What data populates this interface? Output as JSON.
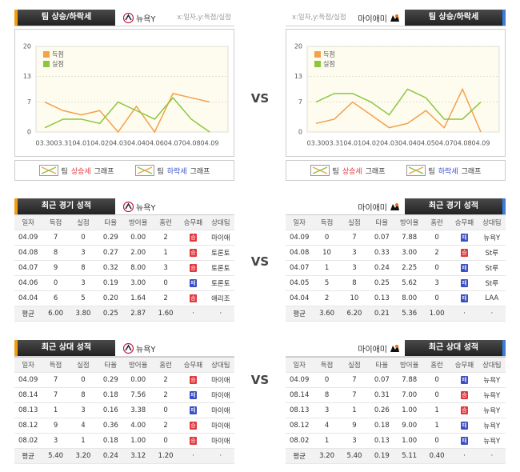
{
  "chart_data": [
    {
      "type": "line",
      "categories": [
        "03.30",
        "03.31",
        "04.01",
        "04.02",
        "04.03",
        "04.04",
        "04.06",
        "04.07",
        "04.08",
        "04.09"
      ],
      "series": [
        {
          "name": "득점",
          "color": "#f4a04c",
          "values": [
            7,
            5,
            4,
            5,
            0,
            6,
            0,
            9,
            8,
            7
          ]
        },
        {
          "name": "실점",
          "color": "#8cc63e",
          "values": [
            1,
            3,
            3,
            2,
            7,
            5,
            3,
            8,
            3,
            0
          ]
        }
      ],
      "ylim": [
        0,
        20
      ],
      "yticks": [
        0,
        7,
        13,
        20
      ],
      "grid": true
    },
    {
      "type": "line",
      "categories": [
        "03.30",
        "03.31",
        "04.01",
        "04.02",
        "04.03",
        "04.04",
        "04.05",
        "04.07",
        "04.08",
        "04.09"
      ],
      "series": [
        {
          "name": "득점",
          "color": "#f4a04c",
          "values": [
            2,
            3,
            7,
            4,
            1,
            2,
            5,
            1,
            10,
            0
          ]
        },
        {
          "name": "실점",
          "color": "#8cc63e",
          "values": [
            7,
            9,
            9,
            7,
            4,
            10,
            8,
            3,
            3,
            7
          ]
        }
      ],
      "ylim": [
        0,
        20
      ],
      "yticks": [
        0,
        7,
        13,
        20
      ],
      "grid": true
    }
  ],
  "trend_header": {
    "title": "팀 상승/하락세",
    "axis_note": "x:일자,y:득점/실점"
  },
  "teams": [
    "뉴욕Y",
    "마이애미"
  ],
  "vs": "VS",
  "trend_legend": {
    "prefix": "팀",
    "up": "상승세",
    "down": "하락세",
    "suffix": "그래프"
  },
  "result_colors": {
    "승": "#e0393e",
    "패": "#3b4fc4"
  },
  "tables": [
    {
      "title": "최근 경기 성적",
      "columns": [
        "일자",
        "득점",
        "실점",
        "타율",
        "방어율",
        "홈런",
        "승무패",
        "상대팀"
      ],
      "sides": [
        {
          "rows": [
            [
              "04.09",
              "7",
              "0",
              "0.29",
              "0.00",
              "2",
              "승",
              "마이애"
            ],
            [
              "04.08",
              "8",
              "3",
              "0.27",
              "2.00",
              "1",
              "승",
              "토론토"
            ],
            [
              "04.07",
              "9",
              "8",
              "0.32",
              "8.00",
              "3",
              "승",
              "토론토"
            ],
            [
              "04.06",
              "0",
              "3",
              "0.19",
              "3.00",
              "0",
              "패",
              "토론토"
            ],
            [
              "04.04",
              "6",
              "5",
              "0.20",
              "1.64",
              "2",
              "승",
              "애리조"
            ],
            [
              "평균",
              "6.00",
              "3.80",
              "0.25",
              "2.87",
              "1.60",
              "·",
              "·"
            ]
          ]
        },
        {
          "rows": [
            [
              "04.09",
              "0",
              "7",
              "0.07",
              "7.88",
              "0",
              "패",
              "뉴욕Y"
            ],
            [
              "04.08",
              "10",
              "3",
              "0.33",
              "3.00",
              "2",
              "승",
              "St루"
            ],
            [
              "04.07",
              "1",
              "3",
              "0.24",
              "2.25",
              "0",
              "패",
              "St루"
            ],
            [
              "04.05",
              "5",
              "8",
              "0.25",
              "5.62",
              "3",
              "패",
              "St루"
            ],
            [
              "04.04",
              "2",
              "10",
              "0.13",
              "8.00",
              "0",
              "패",
              "LAA"
            ],
            [
              "평균",
              "3.60",
              "6.20",
              "0.21",
              "5.36",
              "1.00",
              "·",
              "·"
            ]
          ]
        }
      ]
    },
    {
      "title": "최근 상대 성적",
      "columns": [
        "일자",
        "득점",
        "실점",
        "타율",
        "방어율",
        "홈런",
        "승무패",
        "상대팀"
      ],
      "sides": [
        {
          "rows": [
            [
              "04.09",
              "7",
              "0",
              "0.29",
              "0.00",
              "2",
              "승",
              "마이애"
            ],
            [
              "08.14",
              "7",
              "8",
              "0.18",
              "7.56",
              "2",
              "패",
              "마이애"
            ],
            [
              "08.13",
              "1",
              "3",
              "0.16",
              "3.38",
              "0",
              "패",
              "마이애"
            ],
            [
              "08.12",
              "9",
              "4",
              "0.36",
              "4.00",
              "2",
              "승",
              "마이애"
            ],
            [
              "08.02",
              "3",
              "1",
              "0.18",
              "1.00",
              "0",
              "승",
              "마이애"
            ],
            [
              "평균",
              "5.40",
              "3.20",
              "0.24",
              "3.12",
              "1.20",
              "·",
              "·"
            ]
          ]
        },
        {
          "rows": [
            [
              "04.09",
              "0",
              "7",
              "0.07",
              "7.88",
              "0",
              "패",
              "뉴욕Y"
            ],
            [
              "08.14",
              "8",
              "7",
              "0.31",
              "7.00",
              "0",
              "승",
              "뉴욕Y"
            ],
            [
              "08.13",
              "3",
              "1",
              "0.26",
              "1.00",
              "1",
              "승",
              "뉴욕Y"
            ],
            [
              "08.12",
              "4",
              "9",
              "0.18",
              "9.00",
              "1",
              "패",
              "뉴욕Y"
            ],
            [
              "08.02",
              "1",
              "3",
              "0.13",
              "1.00",
              "0",
              "패",
              "뉴욕Y"
            ],
            [
              "평균",
              "3.20",
              "5.40",
              "0.19",
              "5.11",
              "0.40",
              "·",
              "·"
            ]
          ]
        }
      ]
    }
  ]
}
